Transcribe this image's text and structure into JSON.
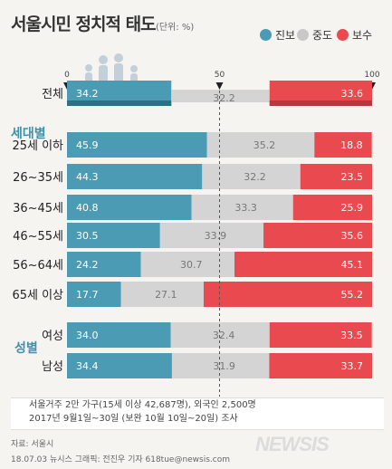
{
  "header": {
    "title": "서울시민 정치적 태도",
    "unit": "(단위: %)"
  },
  "legend": [
    {
      "label": "진보",
      "color": "#4a9bb3"
    },
    {
      "label": "중도",
      "color": "#c8c8c8"
    },
    {
      "label": "보수",
      "color": "#e84a4f"
    }
  ],
  "chart_data": {
    "type": "bar",
    "title": "서울시민 정치적 태도",
    "unit": "%",
    "xlim": [
      0,
      100
    ],
    "ticks": [
      "0",
      "50",
      "100"
    ],
    "sections": [
      "세대별",
      "성별"
    ],
    "rows": [
      {
        "label": "전체",
        "values": [
          34.2,
          32.2,
          33.6
        ],
        "labels": [
          "34.2",
          "32.2",
          "33.6"
        ]
      },
      {
        "section": "세대별",
        "label": "25세 이하",
        "values": [
          45.9,
          35.2,
          18.8
        ],
        "labels": [
          "45.9",
          "35.2",
          "18.8"
        ]
      },
      {
        "label": "26~35세",
        "values": [
          44.3,
          32.2,
          23.5
        ],
        "labels": [
          "44.3",
          "32.2",
          "23.5"
        ]
      },
      {
        "label": "36~45세",
        "values": [
          40.8,
          33.3,
          25.9
        ],
        "labels": [
          "40.8",
          "33.3",
          "25.9"
        ]
      },
      {
        "label": "46~55세",
        "values": [
          30.5,
          33.9,
          35.6
        ],
        "labels": [
          "30.5",
          "33.9",
          "35.6"
        ]
      },
      {
        "label": "56~64세",
        "values": [
          24.2,
          30.7,
          45.1
        ],
        "labels": [
          "24.2",
          "30.7",
          "45.1"
        ]
      },
      {
        "label": "65세 이상",
        "values": [
          17.7,
          27.1,
          55.2
        ],
        "labels": [
          "17.7",
          "27.1",
          "55.2"
        ]
      },
      {
        "section": "성별",
        "label": "여성",
        "values": [
          34.0,
          32.4,
          33.5
        ],
        "labels": [
          "34.0",
          "32.4",
          "33.5"
        ]
      },
      {
        "label": "남성",
        "values": [
          34.4,
          31.9,
          33.7
        ],
        "labels": [
          "34.4",
          "31.9",
          "33.7"
        ]
      }
    ],
    "series": [
      {
        "name": "진보",
        "color": "#4a9bb3"
      },
      {
        "name": "중도",
        "color": "#c8c8c8"
      },
      {
        "name": "보수",
        "color": "#e84a4f"
      }
    ]
  },
  "notes": [
    "서울거주 2만 가구(15세 이상 42,687명), 외국인 2,500명",
    "2017년 9월1일~30일 (보완 10월 10일~20일) 조사"
  ],
  "source": "자료: 서울시",
  "credit": "18.07.03 뉴시스 그래픽: 전진우 기자 618tue@newsis.com",
  "logo": "NEWSIS"
}
